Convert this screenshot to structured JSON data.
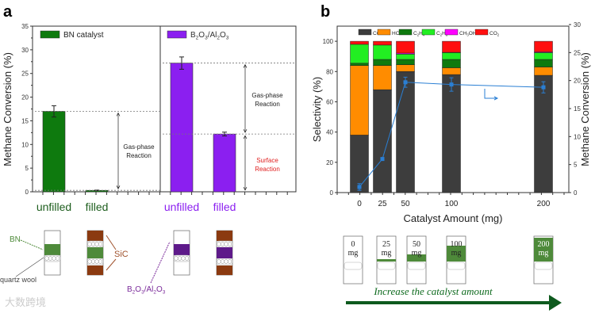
{
  "chart_data": [
    {
      "type": "bar",
      "panel_label": "a",
      "ylabel": "Methane Conversion (%)",
      "ylim": [
        0,
        35
      ],
      "yticks": [
        0,
        5,
        10,
        15,
        20,
        25,
        30,
        35
      ],
      "groups": [
        {
          "name": "BN catalyst",
          "color": "#0e7a0e",
          "label_color": "#1e5e1e",
          "bars": [
            {
              "category": "unfilled",
              "value": 17.0,
              "error": 1.2
            },
            {
              "category": "filled",
              "value": 0.3,
              "error": 0.05
            }
          ],
          "annotation": "Gas-phase Reaction"
        },
        {
          "name": "B2O3/Al2O3",
          "legend_parts": [
            "B",
            "2",
            "O",
            "3",
            "/Al",
            "2",
            "O",
            "3"
          ],
          "color": "#8b1ff0",
          "label_color": "#8b1ff0",
          "bars": [
            {
              "category": "unfilled",
              "value": 27.2,
              "error": 1.3
            },
            {
              "category": "filled",
              "value": 12.2,
              "error": 0.4
            }
          ],
          "annotations": [
            "Gas-phase Reaction",
            "Surface Reaction"
          ],
          "surface_color": "#e02020"
        }
      ]
    },
    {
      "type": "bar",
      "panel_label": "b",
      "xlabel": "Catalyst Amount (mg)",
      "ylabel": "Selectivity (%)",
      "y2label": "Methane Conversion (%)",
      "ylim": [
        0,
        110
      ],
      "y2lim": [
        0,
        30
      ],
      "yticks": [
        0,
        20,
        40,
        60,
        80,
        100
      ],
      "y2ticks": [
        0,
        5,
        10,
        15,
        20,
        25,
        30
      ],
      "x": [
        0,
        25,
        50,
        100,
        200
      ],
      "series": [
        {
          "name": "CO",
          "color": "#3d3d3d",
          "values": [
            38,
            68,
            80,
            78,
            77.5
          ]
        },
        {
          "name": "HCHO",
          "color": "#ff8c00",
          "values": [
            46,
            16,
            4.5,
            4.5,
            5.5
          ]
        },
        {
          "name": "C2H4",
          "sub": "2,4",
          "color": "#0e7a0e",
          "values": [
            1.5,
            4,
            3.5,
            5.5,
            5
          ]
        },
        {
          "name": "C2H6",
          "sub": "2,6",
          "color": "#22ee22",
          "values": [
            12.5,
            9.5,
            3.5,
            4.5,
            4.5
          ]
        },
        {
          "name": "CH3OH",
          "sub": "3",
          "color": "#ff00ff",
          "values": [
            0,
            0,
            0.7,
            0.2,
            0.5
          ]
        },
        {
          "name": "CO2",
          "sub": "2",
          "color": "#ff1010",
          "values": [
            2,
            2.5,
            7.8,
            7.3,
            7
          ]
        }
      ],
      "line": {
        "name": "Methane Conversion",
        "axis": "right",
        "color": "#2a7fd4",
        "values": [
          1.0,
          6.0,
          19.7,
          19.3,
          18.8
        ],
        "errors": [
          0.6,
          0.2,
          0.9,
          1.2,
          1.0
        ]
      }
    }
  ],
  "schematic_a": {
    "labels": {
      "bn": "BN",
      "sic": "SiC",
      "wool": "quartz wool",
      "b2o3": "B2O3/Al2O3"
    }
  },
  "schematic_b": {
    "tubes": [
      "0",
      "25",
      "50",
      "100",
      "200"
    ],
    "unit": "mg",
    "arrow_text": "Increase the catalyst amount"
  },
  "watermark": "大数跨境"
}
